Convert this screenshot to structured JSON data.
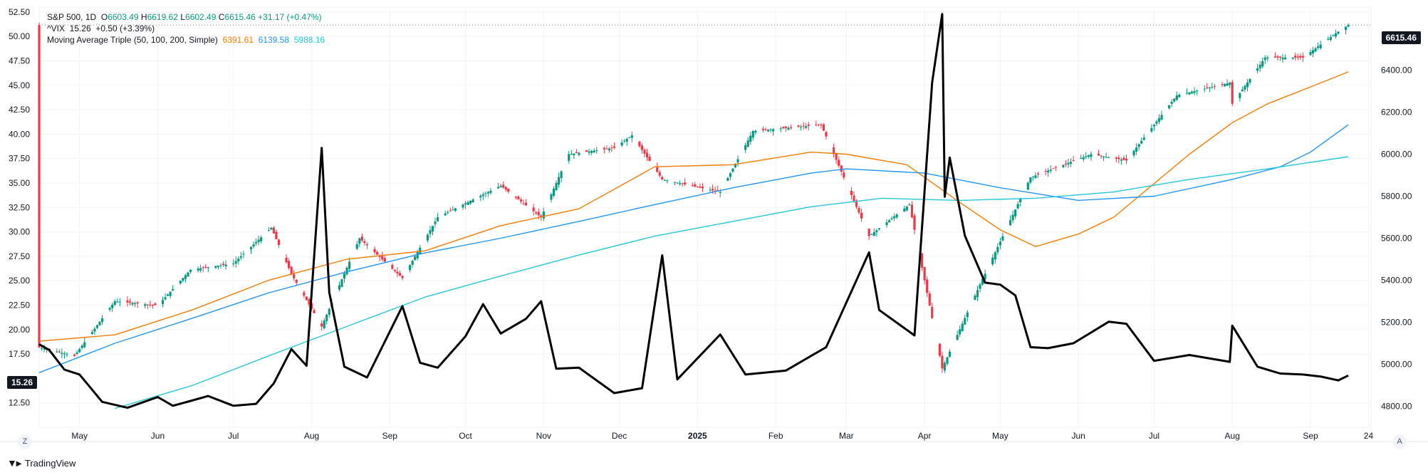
{
  "legend": {
    "symbol": "S&P 500, 1D",
    "o_label": "O",
    "o": "6603.49",
    "h_label": "H",
    "h": "6619.62",
    "l_label": "L",
    "l": "6602.49",
    "c_label": "C",
    "c": "6615.46",
    "change": "+31.17 (+0.47%)",
    "vix_line": "^VIX  15.26  +0.50 (+3.39%)",
    "ma_label": "Moving Average Triple (50, 100, 200, Simple)",
    "ma50": "6391.61",
    "ma100": "6139.58",
    "ma200": "5988.16"
  },
  "price_label": "6615.46",
  "vix_label": "15.26",
  "left_axis_ticks": [
    "52.50",
    "50.00",
    "47.50",
    "45.00",
    "42.50",
    "40.00",
    "37.50",
    "35.00",
    "32.50",
    "30.00",
    "27.50",
    "25.00",
    "22.50",
    "20.00",
    "17.50",
    "12.50"
  ],
  "right_axis_ticks": [
    "6400.00",
    "6200.00",
    "6000.00",
    "5800.00",
    "5600.00",
    "5400.00",
    "5200.00",
    "5000.00",
    "4800.00"
  ],
  "x_axis_ticks": [
    "May",
    "Jun",
    "Jul",
    "Aug",
    "Sep",
    "Oct",
    "Nov",
    "Dec",
    "2025",
    "Feb",
    "Mar",
    "Apr",
    "May",
    "Jun",
    "Jul",
    "Aug",
    "Sep",
    "24"
  ],
  "buttons": {
    "left": "Z",
    "right": "A"
  },
  "brand": "TradingView",
  "colors": {
    "up": "#089981",
    "down": "#f23645",
    "ma50": "#f57c00",
    "ma100": "#2196f3",
    "ma200": "#26c6da",
    "vix": "#000000"
  },
  "chart_data": {
    "type": "line",
    "left_axis": {
      "label": "",
      "ylim": [
        10,
        53
      ]
    },
    "right_axis": {
      "label": "",
      "ylim": [
        4700,
        6700
      ]
    },
    "x_range": [
      "2024-04-15",
      "2025-09-25"
    ],
    "series": [
      {
        "name": "S&P 500",
        "kind": "candles",
        "axis": "right",
        "points": [
          [
            "2024-04-15",
            5080
          ],
          [
            "2024-04-29",
            5040
          ],
          [
            "2024-05-15",
            5300
          ],
          [
            "2024-06-01",
            5280
          ],
          [
            "2024-06-14",
            5450
          ],
          [
            "2024-07-01",
            5480
          ],
          [
            "2024-07-16",
            5650
          ],
          [
            "2024-07-24",
            5430
          ],
          [
            "2024-08-05",
            5180
          ],
          [
            "2024-08-20",
            5600
          ],
          [
            "2024-09-06",
            5410
          ],
          [
            "2024-09-20",
            5700
          ],
          [
            "2024-10-15",
            5850
          ],
          [
            "2024-10-31",
            5700
          ],
          [
            "2024-11-11",
            6000
          ],
          [
            "2024-11-29",
            6030
          ],
          [
            "2024-12-06",
            6090
          ],
          [
            "2024-12-18",
            5880
          ],
          [
            "2025-01-10",
            5820
          ],
          [
            "2025-01-23",
            6110
          ],
          [
            "2025-02-19",
            6140
          ],
          [
            "2025-03-10",
            5610
          ],
          [
            "2025-03-26",
            5760
          ],
          [
            "2025-04-08",
            4980
          ],
          [
            "2025-04-23",
            5380
          ],
          [
            "2025-05-13",
            5890
          ],
          [
            "2025-06-06",
            6000
          ],
          [
            "2025-06-20",
            5970
          ],
          [
            "2025-07-10",
            6280
          ],
          [
            "2025-07-31",
            6340
          ],
          [
            "2025-08-01",
            6240
          ],
          [
            "2025-08-14",
            6460
          ],
          [
            "2025-08-29",
            6460
          ],
          [
            "2025-09-12",
            6584
          ],
          [
            "2025-09-16",
            6615
          ]
        ]
      },
      {
        "name": "SMA 50",
        "axis": "right",
        "points": [
          [
            "2024-04-15",
            5110
          ],
          [
            "2024-05-15",
            5140
          ],
          [
            "2024-06-15",
            5260
          ],
          [
            "2024-07-15",
            5400
          ],
          [
            "2024-08-15",
            5500
          ],
          [
            "2024-09-15",
            5540
          ],
          [
            "2024-10-15",
            5660
          ],
          [
            "2024-11-15",
            5740
          ],
          [
            "2024-12-15",
            5940
          ],
          [
            "2025-01-15",
            5950
          ],
          [
            "2025-02-15",
            6010
          ],
          [
            "2025-03-01",
            6000
          ],
          [
            "2025-03-25",
            5950
          ],
          [
            "2025-04-15",
            5770
          ],
          [
            "2025-05-01",
            5640
          ],
          [
            "2025-05-15",
            5560
          ],
          [
            "2025-06-01",
            5620
          ],
          [
            "2025-06-15",
            5700
          ],
          [
            "2025-07-01",
            5860
          ],
          [
            "2025-07-15",
            6000
          ],
          [
            "2025-08-01",
            6150
          ],
          [
            "2025-08-15",
            6240
          ],
          [
            "2025-09-01",
            6320
          ],
          [
            "2025-09-16",
            6392
          ]
        ]
      },
      {
        "name": "SMA 100",
        "axis": "right",
        "points": [
          [
            "2024-04-15",
            4960
          ],
          [
            "2024-05-15",
            5100
          ],
          [
            "2024-06-15",
            5220
          ],
          [
            "2024-07-15",
            5340
          ],
          [
            "2024-08-15",
            5440
          ],
          [
            "2024-09-15",
            5530
          ],
          [
            "2024-10-15",
            5600
          ],
          [
            "2024-11-15",
            5680
          ],
          [
            "2024-12-15",
            5760
          ],
          [
            "2025-01-15",
            5840
          ],
          [
            "2025-02-15",
            5910
          ],
          [
            "2025-03-01",
            5930
          ],
          [
            "2025-04-01",
            5910
          ],
          [
            "2025-05-01",
            5840
          ],
          [
            "2025-06-01",
            5780
          ],
          [
            "2025-07-01",
            5800
          ],
          [
            "2025-08-01",
            5880
          ],
          [
            "2025-08-20",
            5940
          ],
          [
            "2025-09-01",
            6010
          ],
          [
            "2025-09-16",
            6140
          ]
        ]
      },
      {
        "name": "SMA 200",
        "axis": "right",
        "points": [
          [
            "2024-05-15",
            4790
          ],
          [
            "2024-06-15",
            4900
          ],
          [
            "2024-07-15",
            5040
          ],
          [
            "2024-08-15",
            5180
          ],
          [
            "2024-09-15",
            5320
          ],
          [
            "2024-10-15",
            5420
          ],
          [
            "2024-11-15",
            5520
          ],
          [
            "2024-12-15",
            5610
          ],
          [
            "2025-01-15",
            5680
          ],
          [
            "2025-02-15",
            5750
          ],
          [
            "2025-03-15",
            5790
          ],
          [
            "2025-04-15",
            5780
          ],
          [
            "2025-05-15",
            5790
          ],
          [
            "2025-06-15",
            5820
          ],
          [
            "2025-07-15",
            5880
          ],
          [
            "2025-08-15",
            5930
          ],
          [
            "2025-09-16",
            5988
          ]
        ]
      },
      {
        "name": "^VIX",
        "axis": "left",
        "points": [
          [
            "2024-04-15",
            18.5
          ],
          [
            "2024-04-19",
            17.9
          ],
          [
            "2024-04-25",
            15.9
          ],
          [
            "2024-05-01",
            15.4
          ],
          [
            "2024-05-10",
            12.6
          ],
          [
            "2024-05-20",
            12.0
          ],
          [
            "2024-06-01",
            13.1
          ],
          [
            "2024-06-07",
            12.2
          ],
          [
            "2024-06-14",
            12.7
          ],
          [
            "2024-06-21",
            13.2
          ],
          [
            "2024-07-01",
            12.2
          ],
          [
            "2024-07-10",
            12.4
          ],
          [
            "2024-07-17",
            14.5
          ],
          [
            "2024-07-24",
            18.0
          ],
          [
            "2024-07-30",
            16.3
          ],
          [
            "2024-08-05",
            38.6
          ],
          [
            "2024-08-08",
            23.8
          ],
          [
            "2024-08-14",
            16.2
          ],
          [
            "2024-08-23",
            15.1
          ],
          [
            "2024-09-06",
            22.4
          ],
          [
            "2024-09-13",
            16.6
          ],
          [
            "2024-09-20",
            16.1
          ],
          [
            "2024-10-01",
            19.3
          ],
          [
            "2024-10-08",
            22.6
          ],
          [
            "2024-10-15",
            19.6
          ],
          [
            "2024-10-25",
            21.1
          ],
          [
            "2024-10-31",
            22.9
          ],
          [
            "2024-11-06",
            16.0
          ],
          [
            "2024-11-15",
            16.1
          ],
          [
            "2024-11-29",
            13.5
          ],
          [
            "2024-12-10",
            14.0
          ],
          [
            "2024-12-18",
            27.6
          ],
          [
            "2024-12-24",
            14.9
          ],
          [
            "2025-01-10",
            19.5
          ],
          [
            "2025-01-20",
            15.4
          ],
          [
            "2025-02-05",
            15.8
          ],
          [
            "2025-02-21",
            18.2
          ],
          [
            "2025-03-10",
            27.9
          ],
          [
            "2025-03-14",
            22.0
          ],
          [
            "2025-03-28",
            19.4
          ],
          [
            "2025-04-04",
            45.3
          ],
          [
            "2025-04-08",
            52.3
          ],
          [
            "2025-04-09",
            33.6
          ],
          [
            "2025-04-11",
            37.6
          ],
          [
            "2025-04-17",
            29.6
          ],
          [
            "2025-04-25",
            24.8
          ],
          [
            "2025-05-01",
            24.6
          ],
          [
            "2025-05-07",
            23.5
          ],
          [
            "2025-05-13",
            18.2
          ],
          [
            "2025-05-20",
            18.1
          ],
          [
            "2025-05-30",
            18.6
          ],
          [
            "2025-06-13",
            20.8
          ],
          [
            "2025-06-20",
            20.6
          ],
          [
            "2025-07-01",
            16.8
          ],
          [
            "2025-07-15",
            17.4
          ],
          [
            "2025-07-31",
            16.7
          ],
          [
            "2025-08-01",
            20.4
          ],
          [
            "2025-08-11",
            16.2
          ],
          [
            "2025-08-20",
            15.5
          ],
          [
            "2025-08-29",
            15.4
          ],
          [
            "2025-09-05",
            15.2
          ],
          [
            "2025-09-12",
            14.8
          ],
          [
            "2025-09-16",
            15.3
          ]
        ]
      }
    ]
  }
}
